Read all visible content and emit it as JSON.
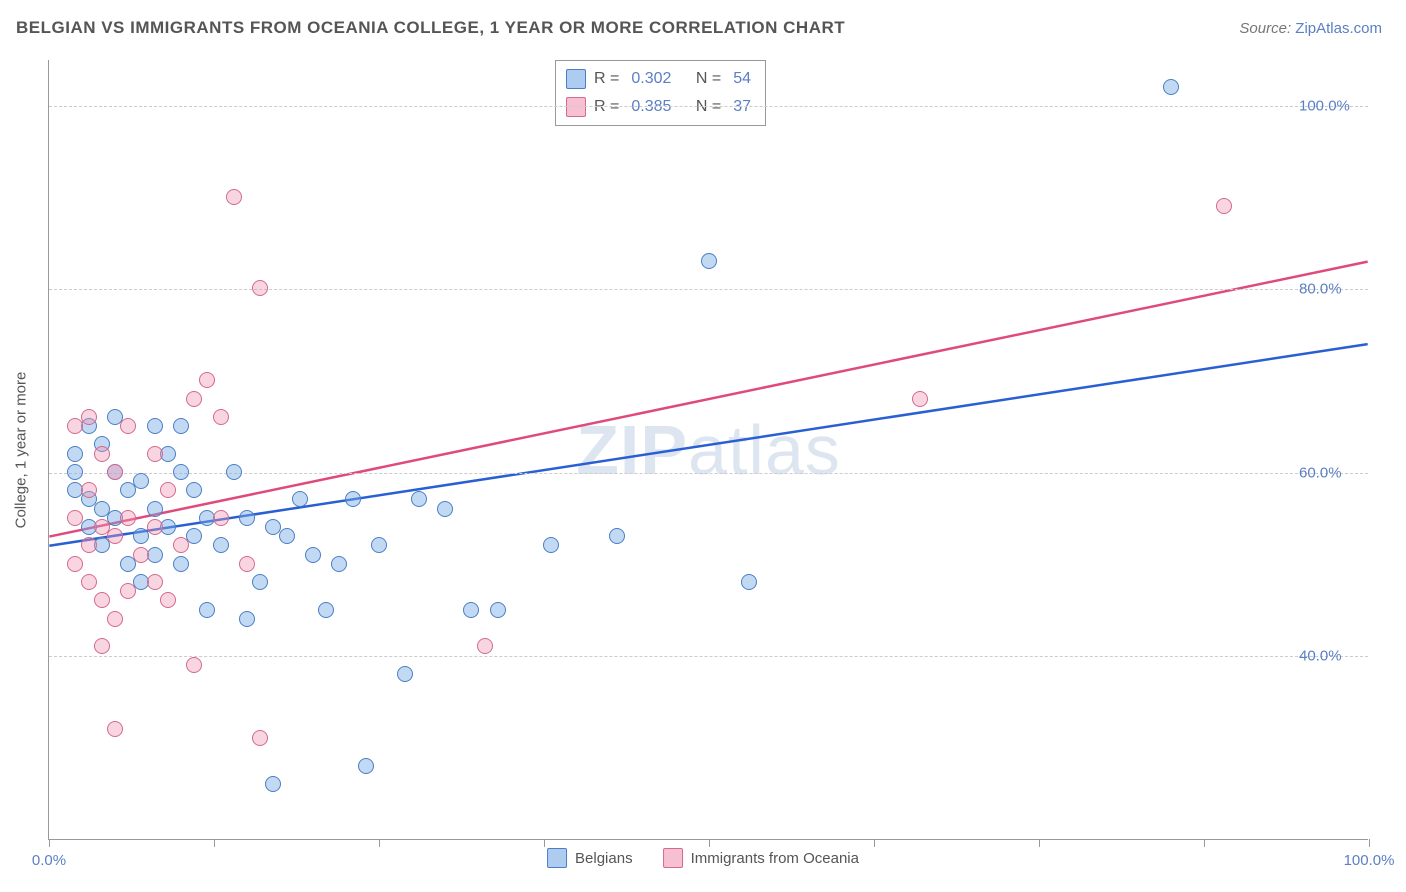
{
  "title": "BELGIAN VS IMMIGRANTS FROM OCEANIA COLLEGE, 1 YEAR OR MORE CORRELATION CHART",
  "source_label": "Source:",
  "source_value": "ZipAtlas.com",
  "watermark_bold": "ZIP",
  "watermark_rest": "atlas",
  "y_axis_title": "College, 1 year or more",
  "chart": {
    "type": "scatter",
    "xlim": [
      0,
      100
    ],
    "ylim": [
      20,
      105
    ],
    "background_color": "#ffffff",
    "grid_color": "#cccccc",
    "grid_dash": true,
    "axis_color": "#999999",
    "marker_radius": 8,
    "marker_border_width": 1.5,
    "y_ticks": [
      40,
      60,
      80,
      100
    ],
    "y_tick_labels": [
      "40.0%",
      "60.0%",
      "80.0%",
      "100.0%"
    ],
    "x_ticks": [
      0,
      12.5,
      25,
      37.5,
      50,
      62.5,
      75,
      87.5,
      100
    ],
    "x_tick_labels_shown": {
      "0": "0.0%",
      "100": "100.0%"
    },
    "series": [
      {
        "name": "Belgians",
        "color_fill": "rgba(120,170,230,0.45)",
        "color_stroke": "#4a7fc4",
        "R": "0.302",
        "N": "54",
        "trend": {
          "x1": 0,
          "y1": 52,
          "x2": 100,
          "y2": 74,
          "stroke": "#2a5fd4",
          "width": 2.5
        },
        "points": [
          [
            2,
            58
          ],
          [
            2,
            60
          ],
          [
            2,
            62
          ],
          [
            3,
            54
          ],
          [
            3,
            57
          ],
          [
            3,
            65
          ],
          [
            4,
            52
          ],
          [
            4,
            56
          ],
          [
            4,
            63
          ],
          [
            5,
            55
          ],
          [
            5,
            60
          ],
          [
            5,
            66
          ],
          [
            6,
            50
          ],
          [
            6,
            58
          ],
          [
            7,
            48
          ],
          [
            7,
            53
          ],
          [
            7,
            59
          ],
          [
            8,
            56
          ],
          [
            8,
            51
          ],
          [
            9,
            54
          ],
          [
            9,
            62
          ],
          [
            10,
            60
          ],
          [
            10,
            65
          ],
          [
            11,
            53
          ],
          [
            11,
            58
          ],
          [
            12,
            45
          ],
          [
            12,
            55
          ],
          [
            13,
            52
          ],
          [
            14,
            60
          ],
          [
            15,
            55
          ],
          [
            15,
            44
          ],
          [
            16,
            48
          ],
          [
            17,
            54
          ],
          [
            17,
            26
          ],
          [
            18,
            53
          ],
          [
            19,
            57
          ],
          [
            20,
            51
          ],
          [
            21,
            45
          ],
          [
            22,
            50
          ],
          [
            23,
            57
          ],
          [
            24,
            28
          ],
          [
            25,
            52
          ],
          [
            27,
            38
          ],
          [
            28,
            57
          ],
          [
            30,
            56
          ],
          [
            32,
            45
          ],
          [
            34,
            45
          ],
          [
            38,
            52
          ],
          [
            43,
            53
          ],
          [
            50,
            83
          ],
          [
            53,
            48
          ],
          [
            85,
            102
          ],
          [
            10,
            50
          ],
          [
            8,
            65
          ]
        ]
      },
      {
        "name": "Immigrants from Oceania",
        "color_fill": "rgba(240,150,180,0.40)",
        "color_stroke": "#d46a8c",
        "R": "0.385",
        "N": "37",
        "trend": {
          "x1": 0,
          "y1": 53,
          "x2": 100,
          "y2": 83,
          "stroke": "#e04a7a",
          "width": 2.5
        },
        "points": [
          [
            2,
            50
          ],
          [
            2,
            55
          ],
          [
            2,
            65
          ],
          [
            3,
            48
          ],
          [
            3,
            52
          ],
          [
            3,
            58
          ],
          [
            3,
            66
          ],
          [
            4,
            46
          ],
          [
            4,
            54
          ],
          [
            4,
            62
          ],
          [
            5,
            44
          ],
          [
            5,
            53
          ],
          [
            5,
            60
          ],
          [
            6,
            47
          ],
          [
            6,
            55
          ],
          [
            6,
            65
          ],
          [
            7,
            51
          ],
          [
            8,
            54
          ],
          [
            8,
            62
          ],
          [
            9,
            46
          ],
          [
            9,
            58
          ],
          [
            10,
            52
          ],
          [
            11,
            68
          ],
          [
            12,
            70
          ],
          [
            13,
            55
          ],
          [
            13,
            66
          ],
          [
            14,
            90
          ],
          [
            15,
            50
          ],
          [
            16,
            80
          ],
          [
            16,
            31
          ],
          [
            11,
            39
          ],
          [
            5,
            32
          ],
          [
            4,
            41
          ],
          [
            33,
            41
          ],
          [
            66,
            68
          ],
          [
            89,
            89
          ],
          [
            8,
            48
          ]
        ]
      }
    ]
  },
  "stats_legend": [
    {
      "swatch_class": "blue",
      "R_label": "R =",
      "R": "0.302",
      "N_label": "N =",
      "N": "54"
    },
    {
      "swatch_class": "pink",
      "R_label": "R =",
      "R": "0.385",
      "N_label": "N =",
      "N": "37"
    }
  ],
  "bottom_legend": [
    {
      "swatch_class": "blue",
      "label": "Belgians"
    },
    {
      "swatch_class": "pink",
      "label": "Immigrants from Oceania"
    }
  ]
}
